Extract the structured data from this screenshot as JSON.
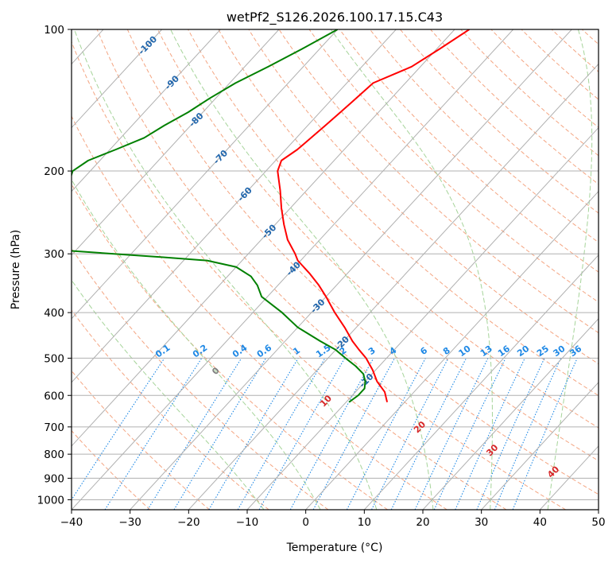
{
  "chart_data": {
    "type": "skew-t",
    "title": "wetPf2_S126.2026.100.17.15.C43",
    "xlabel": "Temperature (°C)",
    "ylabel": "Pressure (hPa)",
    "xlim": [
      -40,
      50
    ],
    "ylim": [
      1050,
      100
    ],
    "x_ticks": [
      -40,
      -30,
      -20,
      -10,
      0,
      10,
      20,
      30,
      40,
      50
    ],
    "y_ticks": [
      100,
      200,
      300,
      400,
      500,
      600,
      700,
      800,
      900,
      1000
    ],
    "temperature_profile": {
      "color": "#ff0000",
      "points": [
        [
          100,
          -47.5
        ],
        [
          110,
          -49.5
        ],
        [
          120,
          -51.5
        ],
        [
          130,
          -55.5
        ],
        [
          140,
          -56
        ],
        [
          150,
          -56.5
        ],
        [
          160,
          -57
        ],
        [
          170,
          -57.5
        ],
        [
          180,
          -58
        ],
        [
          190,
          -59
        ],
        [
          200,
          -58
        ],
        [
          220,
          -54.5
        ],
        [
          240,
          -51.5
        ],
        [
          260,
          -48.5
        ],
        [
          280,
          -45.5
        ],
        [
          300,
          -42
        ],
        [
          310,
          -40.5
        ],
        [
          330,
          -36.5
        ],
        [
          350,
          -33
        ],
        [
          370,
          -30
        ],
        [
          400,
          -26
        ],
        [
          430,
          -22
        ],
        [
          460,
          -18.5
        ],
        [
          480,
          -16
        ],
        [
          500,
          -13.5
        ],
        [
          530,
          -10.5
        ],
        [
          560,
          -8
        ],
        [
          590,
          -5
        ],
        [
          620,
          -3
        ]
      ]
    },
    "dewpoint_profile": {
      "color": "#008000",
      "points": [
        [
          100,
          -70
        ],
        [
          110,
          -73
        ],
        [
          120,
          -76
        ],
        [
          130,
          -79
        ],
        [
          140,
          -81
        ],
        [
          150,
          -82.5
        ],
        [
          160,
          -84.5
        ],
        [
          170,
          -86
        ],
        [
          180,
          -89
        ],
        [
          190,
          -92
        ],
        [
          200,
          -93
        ],
        [
          220,
          -91
        ],
        [
          240,
          -88
        ],
        [
          260,
          -85.5
        ],
        [
          280,
          -84
        ],
        [
          295,
          -82
        ],
        [
          305,
          -64
        ],
        [
          310,
          -56
        ],
        [
          320,
          -50
        ],
        [
          335,
          -46
        ],
        [
          350,
          -43.5
        ],
        [
          370,
          -41
        ],
        [
          400,
          -35
        ],
        [
          430,
          -30
        ],
        [
          460,
          -24
        ],
        [
          480,
          -20
        ],
        [
          500,
          -17
        ],
        [
          520,
          -14
        ],
        [
          540,
          -11.5
        ],
        [
          560,
          -10
        ],
        [
          580,
          -9
        ],
        [
          600,
          -9
        ],
        [
          620,
          -9.5
        ]
      ]
    },
    "dry_adiabats_theta_C": [
      -30,
      -20,
      -10,
      0,
      10,
      20,
      30,
      40,
      50,
      60,
      70,
      80,
      90,
      100,
      110,
      120,
      130,
      140,
      150,
      160,
      170,
      180,
      190,
      200,
      210,
      220,
      230
    ],
    "moist_adiabats_C": [
      -10,
      0,
      10,
      20,
      30,
      40
    ],
    "isotherms_C": [
      -120,
      -110,
      -100,
      -90,
      -80,
      -70,
      -60,
      -50,
      -40,
      -30,
      -20,
      -10,
      0,
      10,
      20,
      30,
      40,
      50
    ],
    "isotherm_labels": [
      "-100",
      "-90",
      "-80",
      "-70",
      "-60",
      "-50",
      "-40",
      "-30",
      "-20",
      "-10"
    ],
    "moist_adiabat_labels": [
      "0",
      "10",
      "20",
      "30",
      "40"
    ],
    "mixing_ratio_lines": [
      "0.1",
      "0.2",
      "0.4",
      "0.6",
      "1",
      "1.5",
      "2",
      "3",
      "4",
      "6",
      "8",
      "10",
      "13",
      "16",
      "20",
      "25",
      "30",
      "36"
    ],
    "colors": {
      "temperature": "#ff0000",
      "dewpoint": "#008000",
      "grid": "#b0b0b0",
      "dry_adiabat": "#f4a582",
      "moist_adiabat": "#a6d49a",
      "mixing_ratio": "#1e88e5",
      "isotherm_label": "#2166ac",
      "moist_label_zero": "#808080",
      "moist_label_warm": "#d62728",
      "lcl_curve": "#d9b99b"
    }
  }
}
